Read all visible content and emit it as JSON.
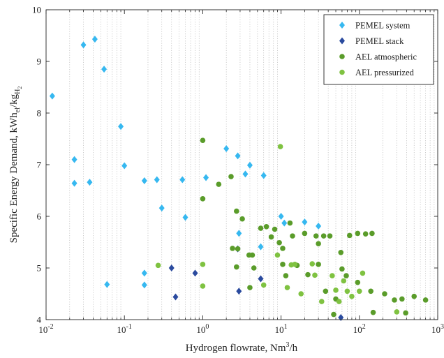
{
  "chart_data": {
    "type": "scatter",
    "xscale": "log",
    "xlim": [
      0.01,
      1000
    ],
    "ylim": [
      4,
      10
    ],
    "xlabel_parts": {
      "main": "Hydrogen flowrate, Nm",
      "sup": "3",
      "tail": "/h"
    },
    "ylabel_parts": {
      "main": "Specific Energy Demand, kWh",
      "sub1": "el",
      "slash": "/kg",
      "sub2": "H",
      "sub3": "2"
    },
    "x_ticks": [
      {
        "value": 0.01,
        "base": "10",
        "exp": "-2"
      },
      {
        "value": 0.1,
        "base": "10",
        "exp": "-1"
      },
      {
        "value": 1,
        "base": "10",
        "exp": "0"
      },
      {
        "value": 10,
        "base": "10",
        "exp": "1"
      },
      {
        "value": 100,
        "base": "10",
        "exp": "2"
      },
      {
        "value": 1000,
        "base": "10",
        "exp": "3"
      }
    ],
    "y_ticks": [
      "4",
      "5",
      "6",
      "7",
      "8",
      "9",
      "10"
    ],
    "legend_position": "top-right",
    "grid": "x minor dotted",
    "series": [
      {
        "name": "PEMEL system",
        "marker": "diamond",
        "color": "#36b8f0",
        "points": [
          [
            0.012,
            8.33
          ],
          [
            0.023,
            7.1
          ],
          [
            0.023,
            6.64
          ],
          [
            0.03,
            9.32
          ],
          [
            0.036,
            6.66
          ],
          [
            0.042,
            9.43
          ],
          [
            0.055,
            8.85
          ],
          [
            0.06,
            4.68
          ],
          [
            0.09,
            7.74
          ],
          [
            0.1,
            6.98
          ],
          [
            0.18,
            6.69
          ],
          [
            0.18,
            4.9
          ],
          [
            0.18,
            4.67
          ],
          [
            0.26,
            6.71
          ],
          [
            0.3,
            6.16
          ],
          [
            0.55,
            6.71
          ],
          [
            0.6,
            5.98
          ],
          [
            1.1,
            6.75
          ],
          [
            2,
            7.31
          ],
          [
            2.8,
            7.17
          ],
          [
            2.9,
            5.67
          ],
          [
            3.5,
            6.82
          ],
          [
            4,
            6.99
          ],
          [
            5.5,
            5.41
          ],
          [
            6,
            6.79
          ],
          [
            10,
            6.0
          ],
          [
            11,
            5.87
          ],
          [
            20,
            5.89
          ],
          [
            30,
            5.81
          ]
        ]
      },
      {
        "name": "PEMEL stack",
        "marker": "diamond",
        "color": "#2a4a9e",
        "points": [
          [
            0.4,
            5.0
          ],
          [
            0.45,
            4.44
          ],
          [
            0.8,
            4.9
          ],
          [
            2.8,
            5.37
          ],
          [
            2.9,
            4.55
          ],
          [
            5.5,
            4.79
          ],
          [
            58,
            4.04
          ]
        ]
      },
      {
        "name": "AEL atmospheric",
        "marker": "circle",
        "color": "#5a9c2a",
        "points": [
          [
            1.0,
            7.47
          ],
          [
            1.0,
            6.34
          ],
          [
            1.6,
            6.62
          ],
          [
            2.3,
            6.77
          ],
          [
            2.7,
            6.1
          ],
          [
            3.2,
            5.95
          ],
          [
            2.4,
            5.38
          ],
          [
            2.8,
            5.37
          ],
          [
            3.9,
            5.25
          ],
          [
            4.3,
            5.25
          ],
          [
            5.5,
            5.77
          ],
          [
            6.5,
            5.8
          ],
          [
            7.5,
            5.6
          ],
          [
            8.3,
            5.75
          ],
          [
            9.5,
            5.49
          ],
          [
            10.5,
            5.38
          ],
          [
            13,
            5.87
          ],
          [
            14,
            5.62
          ],
          [
            20,
            5.67
          ],
          [
            28,
            5.62
          ],
          [
            30,
            5.47
          ],
          [
            35,
            5.62
          ],
          [
            42,
            5.62
          ],
          [
            58,
            5.3
          ],
          [
            75,
            5.63
          ],
          [
            95,
            5.67
          ],
          [
            120,
            5.66
          ],
          [
            145,
            5.67
          ],
          [
            4.0,
            4.62
          ],
          [
            2.7,
            5.02
          ],
          [
            4.5,
            5.0
          ],
          [
            10.5,
            5.07
          ],
          [
            11.5,
            4.85
          ],
          [
            16,
            5.05
          ],
          [
            22,
            4.87
          ],
          [
            30,
            5.07
          ],
          [
            37,
            4.55
          ],
          [
            47,
            4.1
          ],
          [
            50,
            4.4
          ],
          [
            60,
            4.98
          ],
          [
            68,
            4.85
          ],
          [
            95,
            4.72
          ],
          [
            140,
            4.55
          ],
          [
            150,
            4.14
          ],
          [
            210,
            4.5
          ],
          [
            280,
            4.38
          ],
          [
            350,
            4.4
          ],
          [
            390,
            4.13
          ],
          [
            500,
            4.45
          ],
          [
            700,
            4.38
          ]
        ]
      },
      {
        "name": "AEL pressurized",
        "marker": "circle",
        "color": "#7fc241",
        "points": [
          [
            0.27,
            5.05
          ],
          [
            1.0,
            5.07
          ],
          [
            1.0,
            4.65
          ],
          [
            6.0,
            4.67
          ],
          [
            9.8,
            7.35
          ],
          [
            9.0,
            5.25
          ],
          [
            12,
            4.62
          ],
          [
            13.5,
            5.06
          ],
          [
            15,
            5.07
          ],
          [
            18,
            4.5
          ],
          [
            25,
            5.08
          ],
          [
            27,
            4.86
          ],
          [
            33,
            4.35
          ],
          [
            45,
            4.85
          ],
          [
            50,
            4.57
          ],
          [
            55,
            4.35
          ],
          [
            63,
            4.75
          ],
          [
            70,
            4.55
          ],
          [
            80,
            4.45
          ],
          [
            100,
            4.55
          ],
          [
            110,
            4.9
          ],
          [
            300,
            4.15
          ]
        ]
      }
    ]
  }
}
